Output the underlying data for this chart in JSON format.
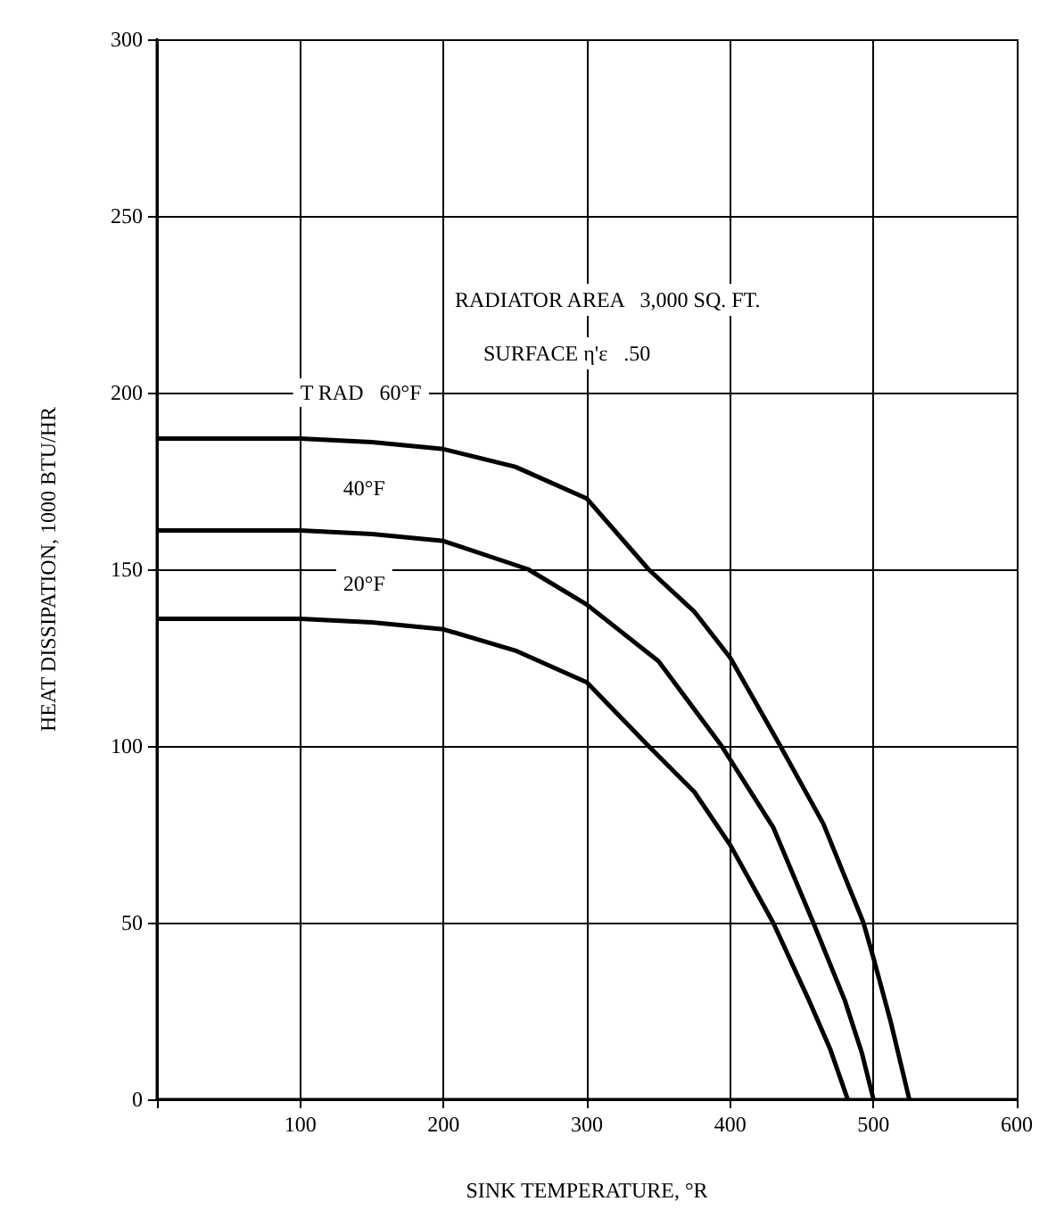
{
  "chart_data": {
    "type": "line",
    "xlabel": "SINK TEMPERATURE, °R",
    "ylabel": "HEAT DISSIPATION, 1000 BTU/HR",
    "xlim": [
      0,
      600
    ],
    "xticks": [
      {
        "value": 0,
        "label": null
      },
      100,
      200,
      300,
      400,
      500,
      600
    ],
    "ylim": [
      0,
      300
    ],
    "yticks": [
      0,
      50,
      100,
      150,
      200,
      250,
      300
    ],
    "grid": true,
    "marker": "none",
    "line_style": "solid",
    "series": [
      {
        "color": "#000000",
        "x": [
          0,
          100,
          150,
          200,
          250,
          300,
          343,
          375,
          400,
          435,
          465,
          493,
          500,
          512,
          525
        ],
        "values": [
          187,
          187,
          186,
          184,
          179,
          170,
          150,
          138,
          125,
          100,
          78,
          50,
          40,
          22,
          0
        ]
      },
      {
        "color": "#000000",
        "x": [
          0,
          100,
          150,
          200,
          259,
          300,
          350,
          394,
          430,
          458,
          480,
          492,
          500
        ],
        "values": [
          161,
          161,
          160,
          158,
          150,
          140,
          124,
          100,
          77,
          50,
          28,
          13,
          0
        ]
      },
      {
        "color": "#000000",
        "x": [
          0,
          100,
          150,
          200,
          250,
          300,
          343,
          375,
          400,
          430,
          455,
          470,
          482
        ],
        "values": [
          136,
          136,
          135,
          133,
          127,
          118,
          100,
          87,
          72,
          50,
          28,
          14,
          0
        ]
      }
    ],
    "annotations": [
      "T RAD   60°F",
      "40°F",
      "20°F",
      "RADIATOR AREA   3,000 SQ. FT.",
      "SURFACE η'ε   .50"
    ]
  }
}
